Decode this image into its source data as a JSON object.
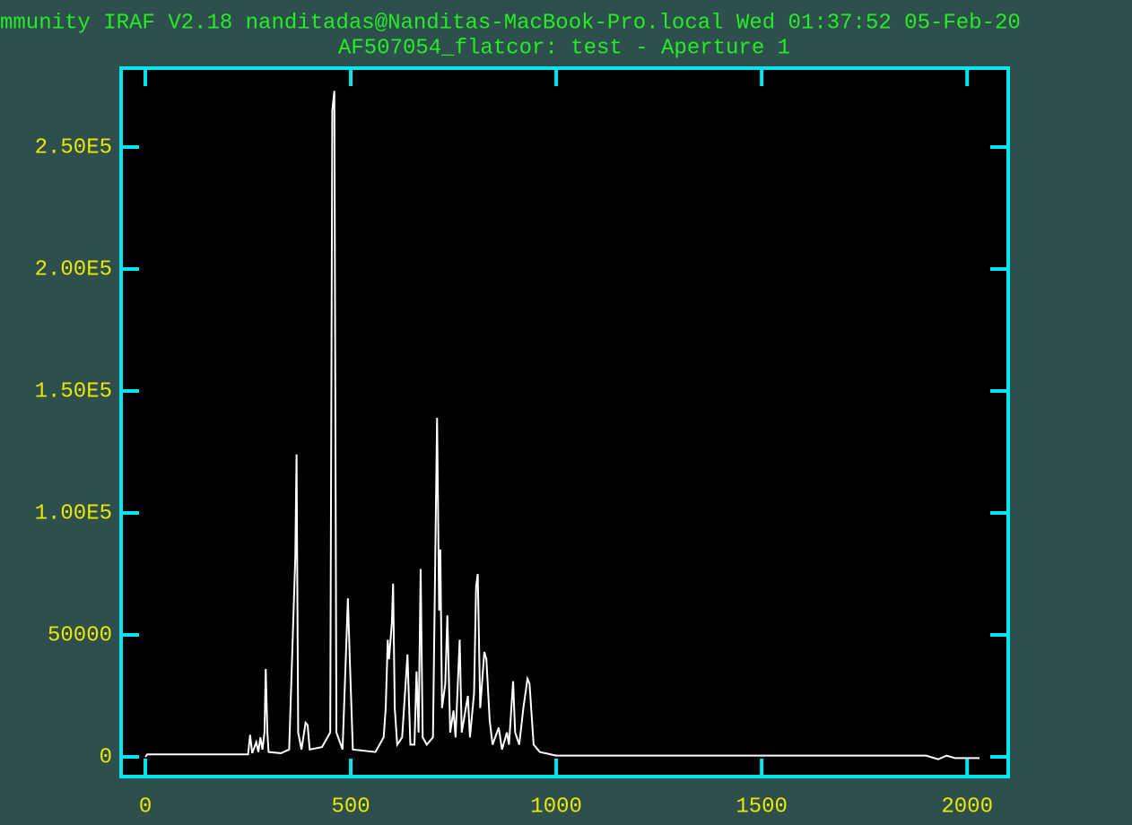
{
  "chart_data": {
    "type": "line",
    "title": "mmunity IRAF V2.18 nanditadas@Nanditas-MacBook-Pro.local Wed 01:37:52 05-Feb-20",
    "subtitle": "AF507054_flatcor: test - Aperture 1",
    "x": [
      0,
      5,
      40,
      250,
      255,
      260,
      270,
      275,
      280,
      285,
      290,
      293,
      297,
      300,
      330,
      350,
      365,
      368,
      372,
      380,
      390,
      395,
      400,
      430,
      450,
      455,
      460,
      465,
      480,
      493,
      498,
      505,
      560,
      580,
      585,
      590,
      593,
      600,
      603,
      607,
      613,
      625,
      638,
      645,
      655,
      660,
      665,
      670,
      675,
      685,
      700,
      710,
      715,
      718,
      722,
      730,
      735,
      742,
      750,
      755,
      765,
      770,
      785,
      790,
      800,
      805,
      809,
      815,
      825,
      830,
      838,
      845,
      860,
      868,
      880,
      885,
      895,
      900,
      910,
      920,
      930,
      935,
      945,
      960,
      1000,
      1100,
      1500,
      1900,
      1930,
      1950,
      1970,
      2030
    ],
    "values": [
      0,
      1000,
      1000,
      1000,
      9000,
      1500,
      6000,
      2000,
      8000,
      3000,
      10000,
      36000,
      10000,
      2000,
      1500,
      3000,
      82000,
      124000,
      10000,
      3000,
      14000,
      13000,
      3000,
      4000,
      10000,
      265000,
      273000,
      10000,
      3000,
      65000,
      38000,
      3000,
      2000,
      8000,
      20000,
      48000,
      40000,
      55000,
      71000,
      20000,
      5000,
      8000,
      42000,
      5000,
      5000,
      35000,
      10000,
      77000,
      8000,
      5000,
      8000,
      139000,
      60000,
      85000,
      20000,
      30000,
      58000,
      10000,
      19000,
      8000,
      48000,
      10000,
      25000,
      8000,
      26000,
      70000,
      75000,
      20000,
      43000,
      40000,
      15000,
      5000,
      12000,
      3000,
      10000,
      5000,
      31000,
      10000,
      5000,
      20000,
      32000,
      30000,
      5000,
      2000,
      500,
      500,
      500,
      500,
      -1000,
      500,
      -500,
      -500
    ],
    "color": "#ffffff",
    "xlim": [
      -59,
      2100
    ],
    "xticks": [
      0,
      500,
      1000,
      1500,
      2000
    ],
    "ylim": [
      -8088,
      282353
    ],
    "yticks": [
      0,
      50000,
      {
        "value": 100000,
        "label": "1.00E5"
      },
      {
        "value": 150000,
        "label": "1.50E5"
      },
      {
        "value": 200000,
        "label": "2.00E5"
      },
      {
        "value": 250000,
        "label": "2.50E5"
      }
    ]
  }
}
